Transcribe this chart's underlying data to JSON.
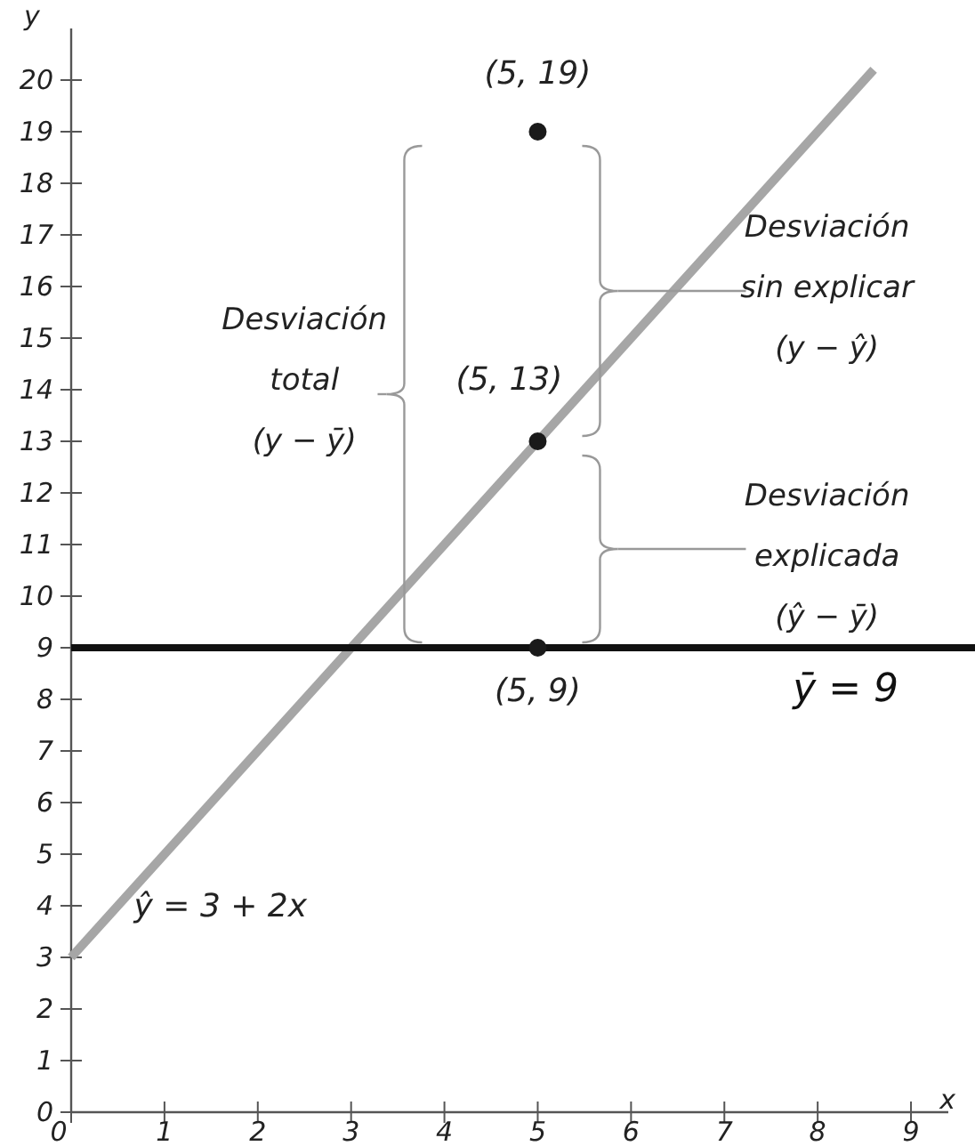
{
  "chart_data": {
    "type": "scatter",
    "xlabel": "x",
    "ylabel": "y",
    "xlim": [
      0,
      9.4
    ],
    "ylim": [
      0,
      21
    ],
    "xticks": [
      0,
      1,
      2,
      3,
      4,
      5,
      6,
      7,
      8,
      9
    ],
    "yticks": [
      0,
      1,
      2,
      3,
      4,
      5,
      6,
      7,
      8,
      9,
      10,
      11,
      12,
      13,
      14,
      15,
      16,
      17,
      18,
      19,
      20
    ],
    "grid": false,
    "marker": "circle",
    "series": [
      {
        "type": "line",
        "color": "#a6a6a6",
        "x": [
          0,
          8.6
        ],
        "values": [
          3,
          20.2
        ],
        "line_style": "solid",
        "marker": "none"
      },
      {
        "color": "#1a1a1a",
        "x": [
          5,
          5,
          5
        ],
        "values": [
          19,
          13,
          9
        ]
      }
    ],
    "ref_lines": [
      {
        "axis": "y",
        "value": 9,
        "label": "ȳ = 9",
        "color": "#111111"
      }
    ],
    "annotations": [
      "(5, 19)",
      "(5, 13)",
      "(5, 9)",
      "ŷ = 3 + 2x",
      "Desviación\ntotal\n(y − ȳ)",
      "Desviación\nsin explicar\n(y − ŷ)",
      "Desviación\nexplicada\n(ŷ − ȳ)"
    ]
  }
}
